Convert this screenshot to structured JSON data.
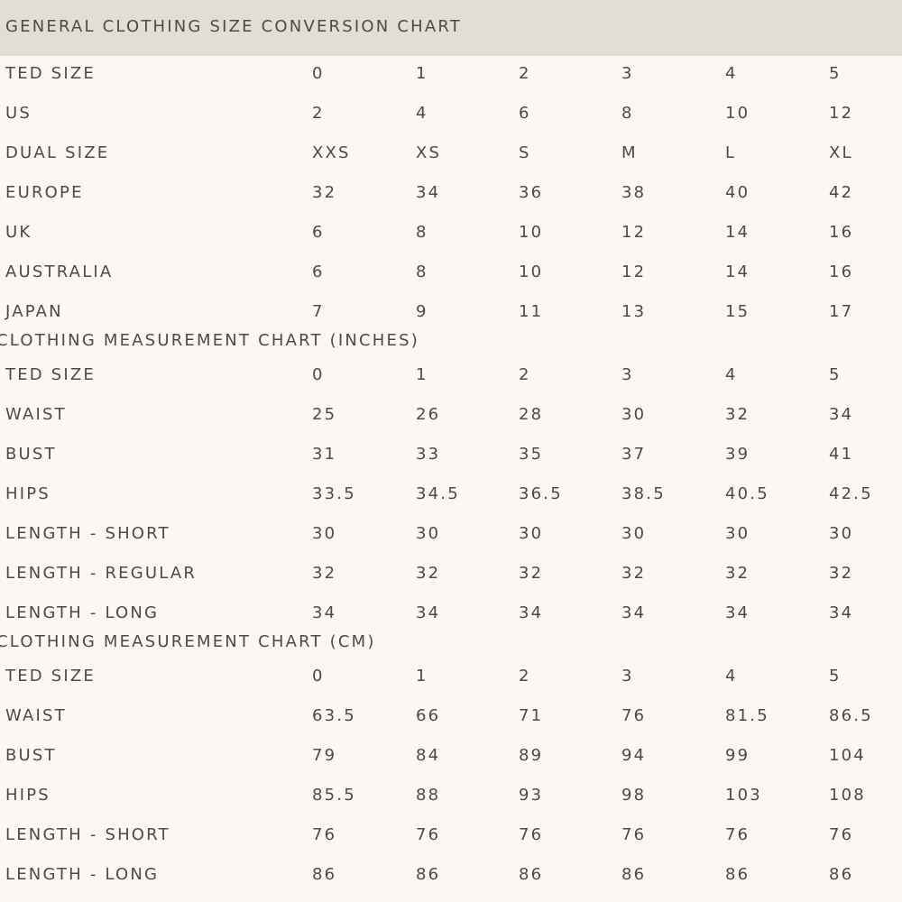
{
  "header": {
    "title": "GENERAL CLOTHING SIZE CONVERSION CHART"
  },
  "tables": [
    {
      "rows": [
        [
          "TED SIZE",
          "0",
          "1",
          "2",
          "3",
          "4",
          "5"
        ],
        [
          "US",
          "2",
          "4",
          "6",
          "8",
          "10",
          "12"
        ],
        [
          "DUAL SIZE",
          "XXS",
          "XS",
          "S",
          "M",
          "L",
          "XL"
        ],
        [
          "EUROPE",
          "32",
          "34",
          "36",
          "38",
          "40",
          "42"
        ],
        [
          "UK",
          "6",
          "8",
          "10",
          "12",
          "14",
          "16"
        ],
        [
          "AUSTRALIA",
          "6",
          "8",
          "10",
          "12",
          "14",
          "16"
        ],
        [
          "JAPAN",
          "7",
          "9",
          "11",
          "13",
          "15",
          "17"
        ]
      ]
    },
    {
      "title": "CLOTHING MEASUREMENT CHART (INCHES)",
      "rows": [
        [
          "TED SIZE",
          "0",
          "1",
          "2",
          "3",
          "4",
          "5"
        ],
        [
          "WAIST",
          "25",
          "26",
          "28",
          "30",
          "32",
          "34"
        ],
        [
          "BUST",
          "31",
          "33",
          "35",
          "37",
          "39",
          "41"
        ],
        [
          "HIPS",
          "33.5",
          "34.5",
          "36.5",
          "38.5",
          "40.5",
          "42.5"
        ],
        [
          "LENGTH - SHORT",
          "30",
          "30",
          "30",
          "30",
          "30",
          "30"
        ],
        [
          "LENGTH - REGULAR",
          "32",
          "32",
          "32",
          "32",
          "32",
          "32"
        ],
        [
          "LENGTH - LONG",
          "34",
          "34",
          "34",
          "34",
          "34",
          "34"
        ]
      ]
    },
    {
      "title": "CLOTHING MEASUREMENT CHART (CM)",
      "rows": [
        [
          "TED SIZE",
          "0",
          "1",
          "2",
          "3",
          "4",
          "5"
        ],
        [
          "WAIST",
          "63.5",
          "66",
          "71",
          "76",
          "81.5",
          "86.5"
        ],
        [
          "BUST",
          "79",
          "84",
          "89",
          "94",
          "99",
          "104"
        ],
        [
          "HIPS",
          "85.5",
          "88",
          "93",
          "98",
          "103",
          "108"
        ],
        [
          "LENGTH - SHORT",
          "76",
          "76",
          "76",
          "76",
          "76",
          "76"
        ],
        [
          "LENGTH - LONG",
          "86",
          "86",
          "86",
          "86",
          "86",
          "86"
        ]
      ]
    }
  ]
}
